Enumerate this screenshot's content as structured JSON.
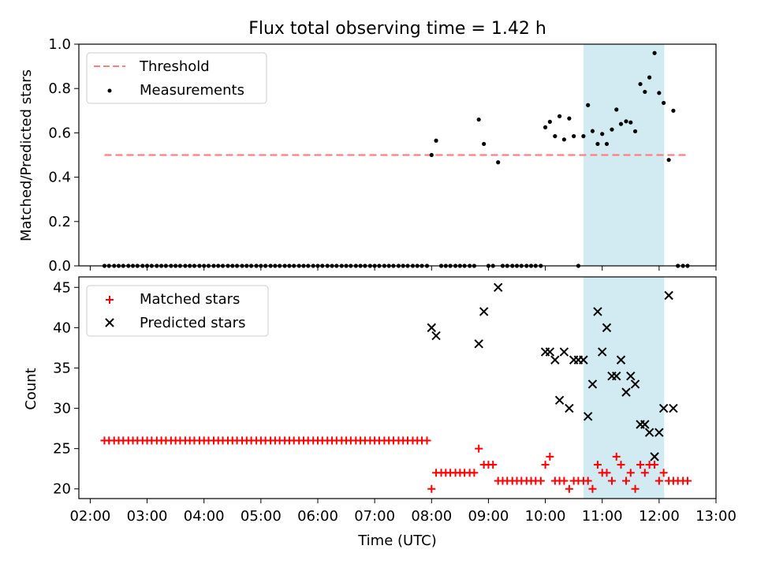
{
  "title": "Flux total observing time = 1.42 h",
  "colors": {
    "highlight": "#add8e6",
    "threshold": "#ff7f7f",
    "measurement": "#000000",
    "matched": "#ff0000",
    "predicted": "#000000"
  },
  "chart_data": [
    {
      "type": "scatter",
      "panel": "top",
      "title": "Flux total observing time = 1.42 h",
      "ylabel": "Matched/Predicted stars",
      "xlabel": "",
      "xlim": [
        1.8,
        13.0
      ],
      "ylim": [
        0.0,
        1.0
      ],
      "yticks": [
        0.0,
        0.2,
        0.4,
        0.6,
        0.8,
        1.0
      ],
      "ytick_labels": [
        "0.0",
        "0.2",
        "0.4",
        "0.6",
        "0.8",
        "1.0"
      ],
      "highlight_span": [
        10.67,
        12.09
      ],
      "threshold": {
        "name": "Threshold",
        "value": 0.5,
        "x_start": 2.25,
        "x_end": 12.5
      },
      "legend": [
        "Threshold",
        "Measurements"
      ],
      "legend_position": "upper left",
      "measurements": {
        "name": "Measurements",
        "x": [
          2.25,
          2.33,
          2.42,
          2.5,
          2.58,
          2.67,
          2.75,
          2.83,
          2.92,
          3.0,
          3.08,
          3.17,
          3.25,
          3.33,
          3.42,
          3.5,
          3.58,
          3.67,
          3.75,
          3.83,
          3.92,
          4.0,
          4.08,
          4.17,
          4.25,
          4.33,
          4.42,
          4.5,
          4.58,
          4.67,
          4.75,
          4.83,
          4.92,
          5.0,
          5.08,
          5.17,
          5.25,
          5.33,
          5.42,
          5.5,
          5.58,
          5.67,
          5.75,
          5.83,
          5.92,
          6.0,
          6.08,
          6.17,
          6.25,
          6.33,
          6.42,
          6.5,
          6.58,
          6.67,
          6.75,
          6.83,
          6.92,
          7.0,
          7.08,
          7.17,
          7.25,
          7.33,
          7.42,
          7.5,
          7.58,
          7.67,
          7.75,
          7.83,
          7.92,
          8.0,
          8.08,
          8.17,
          8.25,
          8.33,
          8.42,
          8.5,
          8.58,
          8.67,
          8.75,
          8.83,
          8.92,
          9.0,
          9.08,
          9.17,
          9.25,
          9.33,
          9.42,
          9.5,
          9.58,
          9.67,
          9.75,
          9.83,
          9.92,
          10.0,
          10.08,
          10.17,
          10.25,
          10.33,
          10.42,
          10.5,
          10.58,
          10.67,
          10.75,
          10.83,
          10.92,
          11.0,
          11.08,
          11.17,
          11.25,
          11.33,
          11.42,
          11.5,
          11.58,
          11.67,
          11.75,
          11.83,
          11.92,
          12.0,
          12.08,
          12.17,
          12.25,
          12.33,
          12.42,
          12.5
        ],
        "y": [
          0,
          0,
          0,
          0,
          0,
          0,
          0,
          0,
          0,
          0,
          0,
          0,
          0,
          0,
          0,
          0,
          0,
          0,
          0,
          0,
          0,
          0,
          0,
          0,
          0,
          0,
          0,
          0,
          0,
          0,
          0,
          0,
          0,
          0,
          0,
          0,
          0,
          0,
          0,
          0,
          0,
          0,
          0,
          0,
          0,
          0,
          0,
          0,
          0,
          0,
          0,
          0,
          0,
          0,
          0,
          0,
          0,
          0,
          0,
          0,
          0,
          0,
          0,
          0,
          0,
          0,
          0,
          0,
          0,
          0.5,
          0.565,
          0,
          0,
          0,
          0,
          0,
          0,
          0,
          0,
          0.66,
          0.55,
          0,
          0,
          0.467,
          0,
          0,
          0,
          0,
          0,
          0,
          0,
          0,
          0,
          0.625,
          0.65,
          0.585,
          0.675,
          0.57,
          0.665,
          0.585,
          0,
          0.585,
          0.725,
          0.608,
          0.55,
          0.595,
          0.55,
          0.615,
          0.705,
          0.64,
          0.652,
          0.647,
          0.607,
          0.82,
          0.785,
          0.85,
          0.96,
          0.78,
          0.735,
          0.478,
          0.7,
          0,
          0,
          0
        ]
      }
    },
    {
      "type": "scatter",
      "panel": "bottom",
      "title": "",
      "xlabel": "Time (UTC)",
      "ylabel": "Count",
      "xlim": [
        1.8,
        13.0
      ],
      "ylim": [
        18.8,
        46.3
      ],
      "xticks": [
        2,
        3,
        4,
        5,
        6,
        7,
        8,
        9,
        10,
        11,
        12,
        13
      ],
      "xtick_labels": [
        "02:00",
        "03:00",
        "04:00",
        "05:00",
        "06:00",
        "07:00",
        "08:00",
        "09:00",
        "10:00",
        "11:00",
        "12:00",
        "13:00"
      ],
      "yticks": [
        20,
        25,
        30,
        35,
        40,
        45
      ],
      "ytick_labels": [
        "20",
        "25",
        "30",
        "35",
        "40",
        "45"
      ],
      "highlight_span": [
        10.67,
        12.09
      ],
      "legend": [
        "Matched stars",
        "Predicted stars"
      ],
      "legend_position": "upper left",
      "series": [
        {
          "name": "Matched stars",
          "marker": "+",
          "x": [
            2.25,
            2.33,
            2.42,
            2.5,
            2.58,
            2.67,
            2.75,
            2.83,
            2.92,
            3.0,
            3.08,
            3.17,
            3.25,
            3.33,
            3.42,
            3.5,
            3.58,
            3.67,
            3.75,
            3.83,
            3.92,
            4.0,
            4.08,
            4.17,
            4.25,
            4.33,
            4.42,
            4.5,
            4.58,
            4.67,
            4.75,
            4.83,
            4.92,
            5.0,
            5.08,
            5.17,
            5.25,
            5.33,
            5.42,
            5.5,
            5.58,
            5.67,
            5.75,
            5.83,
            5.92,
            6.0,
            6.08,
            6.17,
            6.25,
            6.33,
            6.42,
            6.5,
            6.58,
            6.67,
            6.75,
            6.83,
            6.92,
            7.0,
            7.08,
            7.17,
            7.25,
            7.33,
            7.42,
            7.5,
            7.58,
            7.67,
            7.75,
            7.83,
            7.92,
            8.0,
            8.08,
            8.17,
            8.25,
            8.33,
            8.42,
            8.5,
            8.58,
            8.67,
            8.75,
            8.83,
            8.92,
            9.0,
            9.08,
            9.17,
            9.25,
            9.33,
            9.42,
            9.5,
            9.58,
            9.67,
            9.75,
            9.83,
            9.92,
            10.0,
            10.08,
            10.17,
            10.25,
            10.33,
            10.42,
            10.5,
            10.58,
            10.67,
            10.75,
            10.83,
            10.92,
            11.0,
            11.08,
            11.17,
            11.25,
            11.33,
            11.42,
            11.5,
            11.58,
            11.67,
            11.75,
            11.83,
            11.92,
            12.0,
            12.08,
            12.17,
            12.25,
            12.33,
            12.42,
            12.5
          ],
          "y": [
            26,
            26,
            26,
            26,
            26,
            26,
            26,
            26,
            26,
            26,
            26,
            26,
            26,
            26,
            26,
            26,
            26,
            26,
            26,
            26,
            26,
            26,
            26,
            26,
            26,
            26,
            26,
            26,
            26,
            26,
            26,
            26,
            26,
            26,
            26,
            26,
            26,
            26,
            26,
            26,
            26,
            26,
            26,
            26,
            26,
            26,
            26,
            26,
            26,
            26,
            26,
            26,
            26,
            26,
            26,
            26,
            26,
            26,
            26,
            26,
            26,
            26,
            26,
            26,
            26,
            26,
            26,
            26,
            26,
            20,
            22,
            22,
            22,
            22,
            22,
            22,
            22,
            22,
            22,
            25,
            23,
            23,
            23,
            21,
            21,
            21,
            21,
            21,
            21,
            21,
            21,
            21,
            21,
            23,
            24,
            21,
            21,
            21,
            20,
            21,
            21,
            21,
            21,
            20,
            23,
            22,
            22,
            21,
            24,
            23,
            21,
            22,
            20,
            23,
            22,
            23,
            23,
            21,
            22,
            21,
            21,
            21,
            21,
            21
          ]
        },
        {
          "name": "Predicted stars",
          "marker": "x",
          "x": [
            8.0,
            8.08,
            8.83,
            8.92,
            9.17,
            10.0,
            10.08,
            10.17,
            10.25,
            10.33,
            10.42,
            10.5,
            10.58,
            10.67,
            10.75,
            10.83,
            10.92,
            11.0,
            11.08,
            11.17,
            11.25,
            11.33,
            11.42,
            11.5,
            11.58,
            11.67,
            11.75,
            11.83,
            11.92,
            12.0,
            12.08,
            12.17,
            12.25
          ],
          "y": [
            40,
            39,
            38,
            42,
            45,
            37,
            37,
            36,
            31,
            37,
            30,
            36,
            36,
            36,
            29,
            33,
            42,
            37,
            40,
            34,
            34,
            36,
            32,
            34,
            33,
            28,
            28,
            27,
            24,
            27,
            30,
            44,
            30
          ]
        }
      ]
    }
  ]
}
